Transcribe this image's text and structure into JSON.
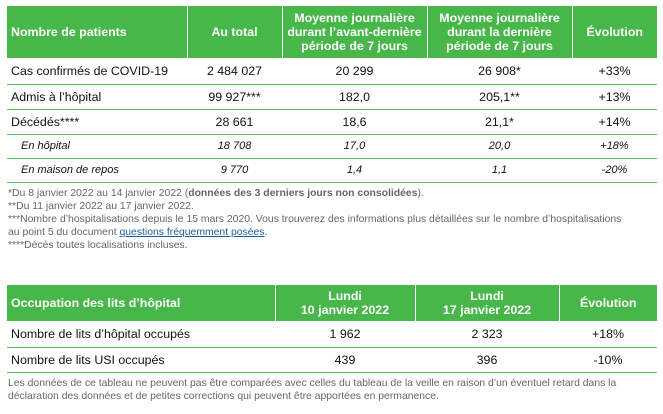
{
  "table1": {
    "headers": [
      "Nombre de patients",
      "Au total",
      "Moyenne journalière durant l’avant-dernière période de 7 jours",
      "Moyenne journalière durant la dernière période de 7 jours",
      "Évolution"
    ],
    "rows": [
      [
        "Cas confirmés de COVID-19",
        "2 484 027",
        "20 299",
        "26 908*",
        "+33%"
      ],
      [
        "Admis à l’hôpital",
        "99 927***",
        "182,0",
        "205,1**",
        "+13%"
      ],
      [
        "Décédés****",
        "28 661",
        "18,6",
        "21,1*",
        "+14%"
      ],
      [
        "En hôpital",
        "18 708",
        "17,0",
        "20,0",
        "+18%"
      ],
      [
        "En maison de repos",
        "9 770",
        "1,4",
        "1,1",
        "-20%"
      ]
    ]
  },
  "notes": {
    "n1_prefix": "*Du 8 janvier 2022 au 14 janvier 2022 (",
    "n1_bold": "données des 3 derniers jours non consolidées",
    "n1_suffix": ").",
    "n2": "**Du 11 janvier 2022 au 17 janvier 2022.",
    "n3_line1": "***Nombre d’hospitalisations depuis le 15 mars 2020. Vous trouverez des informations plus détaillées sur le nombre d’hospitalisations",
    "n3_line2_prefix": "au point 5 du document ",
    "n3_link": "questions fréquemment posées",
    "n3_line2_suffix": ".",
    "n4": "****Décès toutes localisations incluses."
  },
  "table2": {
    "headers": [
      "Occupation des lits d’hôpital",
      "Lundi 10 janvier 2022",
      "Lundi 17 janvier 2022",
      "Évolution"
    ],
    "header_lines": {
      "c1_day": "Lundi",
      "c1_date": "10 janvier 2022",
      "c2_day": "Lundi",
      "c2_date": "17 janvier 2022"
    },
    "rows": [
      [
        "Nombre de lits d’hôpital occupés",
        "1 962",
        "2 323",
        "+18%"
      ],
      [
        "Nombre de lits USI occupés",
        "439",
        "396",
        "-10%"
      ]
    ]
  },
  "footer": "Les données de ce tableau ne peuvent pas être comparées avec celles du tableau de la veille en raison d’un éventuel retard dans la déclaration des données et de petites corrections qui peuvent être apportées en permanence.",
  "colors": {
    "header_bg": "#47b74a",
    "row_border": "#5cbf5e",
    "link": "#1a5c9e"
  }
}
